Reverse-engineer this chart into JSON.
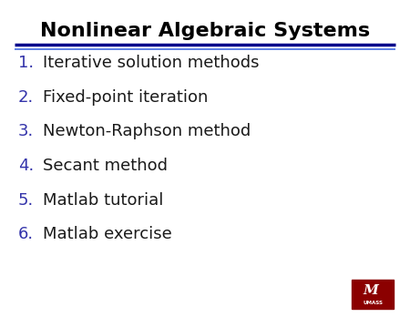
{
  "title": "Nonlinear Algebraic Systems",
  "title_fontsize": 16,
  "title_color": "#000000",
  "slide_bg": "#ffffff",
  "sep_color1": "#00008B",
  "sep_color2": "#4169E1",
  "number_color": "#3333aa",
  "text_color": "#1a1a1a",
  "items": [
    "Iterative solution methods",
    "Fixed-point iteration",
    "Newton-Raphson method",
    "Secant method",
    "Matlab tutorial",
    "Matlab exercise"
  ],
  "item_fontsize": 13,
  "number_fontsize": 13,
  "logo_bg": "#8B0000",
  "logo_text_color": "#ffffff"
}
